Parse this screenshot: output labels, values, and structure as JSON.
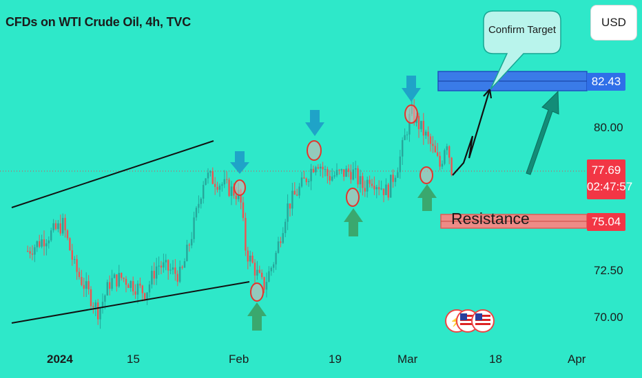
{
  "title": "CFDs on WTI Crude Oil, 4h, TVC",
  "currency_button": "USD",
  "annotations": {
    "confirm_target": "Confirm Target",
    "resistance": "Resistance"
  },
  "price_labels": {
    "target": "82.43",
    "current": "77.69",
    "countdown": "02:47:57",
    "resistance": "75.04"
  },
  "colors": {
    "background": "#2ee8c9",
    "up_candle": "#26a69a",
    "down_candle": "#ef5350",
    "target_zone": "#2f6fe8",
    "resistance_zone": "#f08080",
    "current_price": "#f23645",
    "arrow_down": "#1fa3c8",
    "arrow_up": "#3aa86e"
  },
  "icons": [
    "lightning-icon",
    "us-flag-icon",
    "us-flag-icon"
  ],
  "chart_data": {
    "type": "candlestick",
    "title": "CFDs on WTI Crude Oil, 4h, TVC",
    "y_ticks": [
      70.0,
      72.5,
      80.0
    ],
    "x_ticks": [
      "2024",
      "15",
      "Feb",
      "19",
      "Mar",
      "18",
      "Apr"
    ],
    "ylim": [
      69.0,
      84.0
    ],
    "current_price": 77.69,
    "target_zone": 82.43,
    "resistance_zone": 75.04,
    "close_path": [
      {
        "x": "Dec 27",
        "y": 73.5
      },
      {
        "x": "Jan 2",
        "y": 74.9
      },
      {
        "x": "Jan 4",
        "y": 72.6
      },
      {
        "x": "Jan 8",
        "y": 70.3
      },
      {
        "x": "Jan 10",
        "y": 71.9
      },
      {
        "x": "Jan 12",
        "y": 72.1
      },
      {
        "x": "Jan 16",
        "y": 71.3
      },
      {
        "x": "Jan 18",
        "y": 72.8
      },
      {
        "x": "Jan 22",
        "y": 72.2
      },
      {
        "x": "Jan 24",
        "y": 74.6
      },
      {
        "x": "Jan 26",
        "y": 77.5
      },
      {
        "x": "Jan 29",
        "y": 77.0
      },
      {
        "x": "Feb 1",
        "y": 76.4
      },
      {
        "x": "Feb 2",
        "y": 73.5
      },
      {
        "x": "Feb 5",
        "y": 71.6
      },
      {
        "x": "Feb 7",
        "y": 73.2
      },
      {
        "x": "Feb 9",
        "y": 75.8
      },
      {
        "x": "Feb 12",
        "y": 77.2
      },
      {
        "x": "Feb 14",
        "y": 78.3
      },
      {
        "x": "Feb 16",
        "y": 77.4
      },
      {
        "x": "Feb 20",
        "y": 77.7
      },
      {
        "x": "Feb 22",
        "y": 76.8
      },
      {
        "x": "Feb 23",
        "y": 77.4
      },
      {
        "x": "Feb 26",
        "y": 76.6
      },
      {
        "x": "Feb 28",
        "y": 78.2
      },
      {
        "x": "Mar 1",
        "y": 80.8
      },
      {
        "x": "Mar 4",
        "y": 79.3
      },
      {
        "x": "Mar 6",
        "y": 77.9
      },
      {
        "x": "Mar 7",
        "y": 79.5
      },
      {
        "x": "Mar 8",
        "y": 77.6
      }
    ],
    "trendlines": [
      {
        "name": "wedge-upper",
        "from": {
          "x": "Dec 27",
          "y": 75.0
        },
        "to": {
          "x": "Jan 29",
          "y": 79.0
        }
      },
      {
        "name": "wedge-lower",
        "from": {
          "x": "Dec 27",
          "y": 69.6
        },
        "to": {
          "x": "Feb 2",
          "y": 71.9
        }
      }
    ],
    "markers_high": [
      "Feb 1",
      "Feb 14",
      "Mar 1"
    ],
    "markers_low": [
      "Feb 5",
      "Feb 22",
      "Mar 6"
    ],
    "projections": [
      {
        "name": "projection-zigzag",
        "from": {
          "x": "Mar 8",
          "y": 77.6
        },
        "to": {
          "x": "Mar 14",
          "y": 82.43
        }
      },
      {
        "name": "projection-arrow",
        "from": {
          "x": "Mar 21",
          "y": 77.8
        },
        "to": {
          "x": "Mar 26",
          "y": 81.7
        }
      }
    ]
  }
}
